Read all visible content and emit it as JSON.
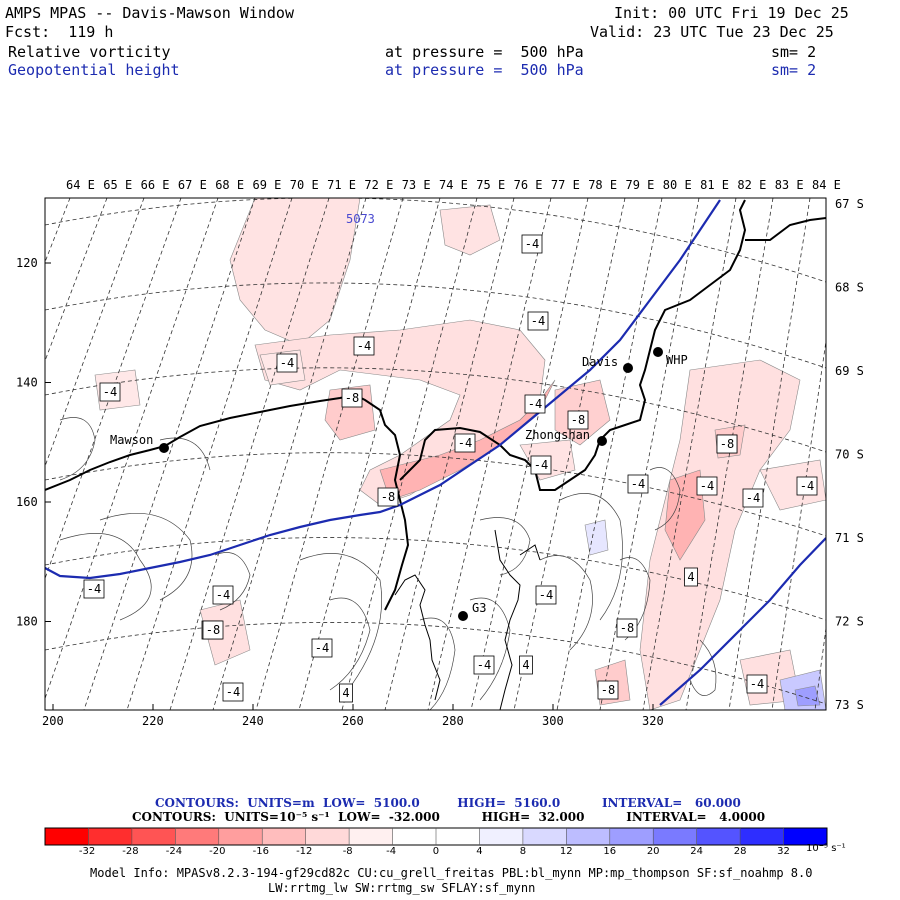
{
  "header": {
    "title": "AMPS MPAS -- Davis-Mawson Window",
    "forecast": "Fcst:  119 h",
    "init": "Init: 00 UTC Fri 19 Dec 25",
    "valid": "Valid: 23 UTC Tue 23 Dec 25",
    "field1_name": "Relative vorticity",
    "field1_level": "at pressure =  500 hPa",
    "field1_smooth": "sm= 2",
    "field2_name": "Geopotential height",
    "field2_level": "at pressure =  500 hPa",
    "field2_smooth": "sm= 2"
  },
  "longitudes": [
    "64 E",
    "65 E",
    "66 E",
    "67 E",
    "68 E",
    "69 E",
    "70 E",
    "71 E",
    "72 E",
    "73 E",
    "74 E",
    "75 E",
    "76 E",
    "77 E",
    "78 E",
    "79 E",
    "80 E",
    "81 E",
    "82 E",
    "83 E",
    "84 E"
  ],
  "latitudes": [
    "67 S",
    "68 S",
    "69 S",
    "70 S",
    "71 S",
    "72 S",
    "73 S"
  ],
  "x_ticks": [
    "200",
    "220",
    "240",
    "260",
    "280",
    "300",
    "320"
  ],
  "y_ticks": [
    "120",
    "140",
    "160",
    "180"
  ],
  "stations": [
    {
      "name": "Mawson"
    },
    {
      "name": "Davis"
    },
    {
      "name": "WHP"
    },
    {
      "name": "Zhongshan"
    },
    {
      "name": "G3"
    }
  ],
  "height_label": "5073",
  "contour_labels": [
    "-4",
    "-4",
    "-4",
    "-4",
    "-4",
    "-8",
    "-4",
    "-4",
    "-8",
    "-4",
    "-4",
    "-8",
    "-4",
    "-4",
    "-4",
    "-8",
    "-4",
    "-4",
    "-4",
    "-8",
    "-4",
    "-4",
    "4",
    "-4",
    "4",
    "-4",
    "-8",
    "-4",
    "4",
    "-8",
    "-8"
  ],
  "legend": {
    "line1": "CONTOURS:  UNITS=m  LOW=  5100.0         HIGH=  5160.0          INTERVAL=   60.000",
    "line2": "CONTOURS:  UNITS=10⁻⁵ s⁻¹  LOW=  -32.000          HIGH=  32.000          INTERVAL=   4.0000",
    "colorbar_labels": [
      "-32",
      "-28",
      "-24",
      "-20",
      "-16",
      "-12",
      "-8",
      "-4",
      "0",
      "4",
      "8",
      "12",
      "16",
      "20",
      "24",
      "28",
      "32"
    ],
    "colorbar_unit": "10⁻⁵ s⁻¹",
    "colors": [
      "#ff0000",
      "#ff2e2e",
      "#ff5454",
      "#ff7a7a",
      "#ff9e9e",
      "#ffbdbd",
      "#ffd9d9",
      "#fff0f0",
      "#ffffff",
      "#ffffff",
      "#f0f0ff",
      "#d9d9ff",
      "#bdbdff",
      "#9e9eff",
      "#7a7aff",
      "#5454ff",
      "#2e2eff",
      "#0000ff"
    ]
  },
  "model_info": {
    "line1": "Model Info: MPASv8.2.3-194-gf29cd82c CU:cu_grell_freitas PBL:bl_mynn MP:mp_thompson SF:sf_noahmp 8.0",
    "line2": "LW:rrtmg_lw SW:rrtmg_sw SFLAY:sf_mynn"
  }
}
